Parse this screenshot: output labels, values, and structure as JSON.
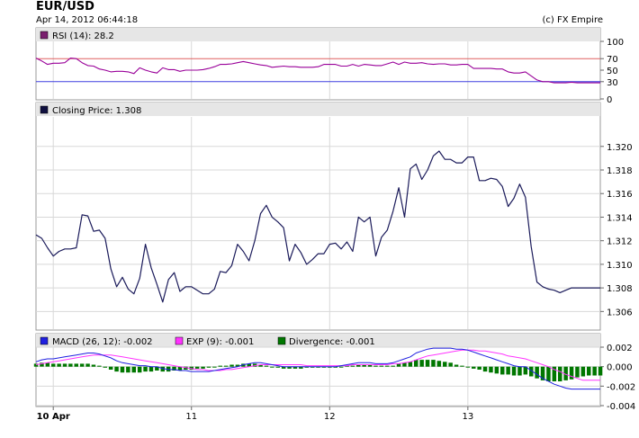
{
  "header": {
    "title": "EUR/USD",
    "timestamp": "Apr 14, 2012 06:44:18",
    "copyright": "(c) FX Empire"
  },
  "colors": {
    "rsi": "#990099",
    "rsi_box": "#7a1f6e",
    "rsi_upper": "#e06060",
    "rsi_lower": "#4040e0",
    "price": "#1a1a5a",
    "price_box": "#101040",
    "macd": "#1f1fe0",
    "exp": "#ff33ff",
    "divergence": "#007700",
    "grid": "#d8d8d8",
    "panel_bg": "#e6e6e6"
  },
  "x_axis": {
    "ticks": [
      {
        "label": "10 Apr",
        "value": 3,
        "bold": true
      },
      {
        "label": "11",
        "value": 27
      },
      {
        "label": "12",
        "value": 51
      },
      {
        "label": "13",
        "value": 75
      }
    ],
    "range": [
      0,
      98
    ]
  },
  "chart_data": [
    {
      "type": "line",
      "panel": "rsi",
      "legend": "RSI (14): 28.2",
      "ylim": [
        0,
        100
      ],
      "y_ticks": [
        "100",
        "70",
        "50",
        "30",
        "0"
      ],
      "y_tick_values": [
        100,
        70,
        50,
        30,
        0
      ],
      "levels": {
        "upper": 70,
        "lower": 30
      },
      "values": [
        71,
        66,
        60,
        62,
        62,
        63,
        71,
        70,
        63,
        58,
        57,
        52,
        50,
        47,
        48,
        48,
        47,
        44,
        54,
        50,
        47,
        45,
        54,
        51,
        51,
        48,
        50,
        50,
        50,
        51,
        53,
        56,
        60,
        60,
        61,
        63,
        65,
        63,
        61,
        59,
        58,
        55,
        56,
        57,
        56,
        56,
        55,
        55,
        55,
        56,
        60,
        60,
        60,
        57,
        57,
        60,
        57,
        60,
        59,
        58,
        58,
        61,
        64,
        60,
        64,
        62,
        62,
        63,
        61,
        60,
        61,
        61,
        59,
        59,
        60,
        60,
        53,
        53,
        53,
        53,
        52,
        52,
        47,
        45,
        45,
        47,
        40,
        33,
        30,
        30,
        28,
        28,
        28,
        29,
        28,
        28,
        28,
        28,
        28
      ]
    },
    {
      "type": "line",
      "panel": "price",
      "legend": "Closing Price: 1.308",
      "ylim": [
        1.3045,
        1.3225
      ],
      "y_ticks": [
        "1.320",
        "1.318",
        "1.316",
        "1.314",
        "1.312",
        "1.310",
        "1.308",
        "1.306"
      ],
      "y_tick_values": [
        1.32,
        1.318,
        1.316,
        1.314,
        1.312,
        1.31,
        1.308,
        1.306
      ],
      "values": [
        1.3125,
        1.3122,
        1.3114,
        1.3107,
        1.3111,
        1.3113,
        1.3113,
        1.3114,
        1.3142,
        1.3141,
        1.3128,
        1.3129,
        1.3122,
        1.3096,
        1.3081,
        1.3089,
        1.3079,
        1.3075,
        1.3088,
        1.3117,
        1.3097,
        1.3083,
        1.3068,
        1.3087,
        1.3093,
        1.3077,
        1.3081,
        1.3081,
        1.3078,
        1.3075,
        1.3075,
        1.3079,
        1.3094,
        1.3093,
        1.3099,
        1.3117,
        1.3111,
        1.3103,
        1.312,
        1.3143,
        1.315,
        1.314,
        1.3136,
        1.3131,
        1.3103,
        1.3117,
        1.311,
        1.31,
        1.3104,
        1.3109,
        1.3109,
        1.3117,
        1.3118,
        1.3113,
        1.3119,
        1.3111,
        1.314,
        1.3136,
        1.314,
        1.3107,
        1.3123,
        1.3129,
        1.3145,
        1.3165,
        1.314,
        1.3181,
        1.3185,
        1.3172,
        1.318,
        1.3192,
        1.3196,
        1.3189,
        1.3189,
        1.3186,
        1.3186,
        1.3191,
        1.3191,
        1.3171,
        1.3171,
        1.3173,
        1.3172,
        1.3166,
        1.3149,
        1.3156,
        1.3168,
        1.3157,
        1.3115,
        1.3085,
        1.3081,
        1.3079,
        1.3078,
        1.3076,
        1.3078,
        1.308,
        1.308,
        1.308,
        1.308,
        1.308,
        1.308
      ]
    },
    {
      "type": "line",
      "panel": "macd",
      "legend": {
        "macd": "MACD (26, 12): -0.002",
        "exp": "EXP (9): -0.001",
        "div": "Divergence: -0.001"
      },
      "ylim": [
        -0.004,
        0.002
      ],
      "y_ticks": [
        "0.002",
        "0.000",
        "-0.002",
        "-0.004"
      ],
      "y_tick_values": [
        0.002,
        0.0,
        -0.002,
        -0.004
      ],
      "series": [
        {
          "name": "MACD",
          "values": [
            0.0005,
            0.0007,
            0.0008,
            0.0008,
            0.0009,
            0.001,
            0.0011,
            0.0012,
            0.0013,
            0.0014,
            0.0014,
            0.0013,
            0.0011,
            0.0009,
            0.0006,
            0.0004,
            0.0003,
            0.0002,
            0.0001,
            0.0001,
            0.0,
            0.0,
            -0.0002,
            -0.0003,
            -0.0003,
            -0.0004,
            -0.0004,
            -0.0005,
            -0.0005,
            -0.0005,
            -0.0005,
            -0.0004,
            -0.0003,
            -0.0002,
            -0.0001,
            0.0,
            0.0002,
            0.0003,
            0.0004,
            0.0004,
            0.0003,
            0.0002,
            0.0001,
            0.0,
            0.0,
            0.0,
            0.0,
            0.0,
            0.0,
            0.0,
            0.0,
            0.0,
            0.0,
            0.0001,
            0.0002,
            0.0003,
            0.0004,
            0.0004,
            0.0004,
            0.0003,
            0.0003,
            0.0003,
            0.0004,
            0.0006,
            0.0008,
            0.001,
            0.0014,
            0.0016,
            0.0018,
            0.0019,
            0.0019,
            0.0019,
            0.0019,
            0.0018,
            0.0018,
            0.0017,
            0.0015,
            0.0013,
            0.0011,
            0.0009,
            0.0007,
            0.0005,
            0.0003,
            0.0001,
            0.0,
            0.0,
            -0.0004,
            -0.0008,
            -0.0012,
            -0.0015,
            -0.0018,
            -0.002,
            -0.0022,
            -0.0023,
            -0.0023,
            -0.0023,
            -0.0023,
            -0.0023,
            -0.0023
          ]
        },
        {
          "name": "EXP",
          "values": [
            0.0002,
            0.0003,
            0.0004,
            0.0005,
            0.0006,
            0.0007,
            0.0008,
            0.0009,
            0.001,
            0.0011,
            0.0012,
            0.0012,
            0.0012,
            0.0012,
            0.0011,
            0.001,
            0.0009,
            0.0008,
            0.0007,
            0.0006,
            0.0005,
            0.0004,
            0.0003,
            0.0002,
            0.0001,
            0.0,
            -0.0001,
            -0.0002,
            -0.0003,
            -0.0003,
            -0.0004,
            -0.0004,
            -0.0004,
            -0.0003,
            -0.0003,
            -0.0002,
            -0.0001,
            0.0,
            0.0001,
            0.0002,
            0.0002,
            0.0002,
            0.0002,
            0.0002,
            0.0002,
            0.0002,
            0.0002,
            0.0001,
            0.0001,
            0.0001,
            0.0001,
            0.0001,
            0.0001,
            0.0001,
            0.0001,
            0.0002,
            0.0002,
            0.0002,
            0.0002,
            0.0002,
            0.0002,
            0.0002,
            0.0003,
            0.0003,
            0.0004,
            0.0005,
            0.0007,
            0.0009,
            0.0011,
            0.0012,
            0.0013,
            0.0014,
            0.0015,
            0.0016,
            0.0017,
            0.0017,
            0.0017,
            0.0016,
            0.0016,
            0.0015,
            0.0014,
            0.0013,
            0.0011,
            0.001,
            0.0009,
            0.0008,
            0.0006,
            0.0004,
            0.0002,
            0.0,
            -0.0003,
            -0.0005,
            -0.0008,
            -0.001,
            -0.0012,
            -0.0014,
            -0.0014,
            -0.0014,
            -0.0014
          ]
        },
        {
          "name": "Divergence",
          "values": [
            0.0003,
            0.0004,
            0.0004,
            0.0003,
            0.0003,
            0.0003,
            0.0003,
            0.0003,
            0.0003,
            0.0003,
            0.0002,
            0.0001,
            -0.0001,
            -0.0003,
            -0.0005,
            -0.0006,
            -0.0006,
            -0.0006,
            -0.0006,
            -0.0005,
            -0.0005,
            -0.0004,
            -0.0005,
            -0.0005,
            -0.0004,
            -0.0004,
            -0.0003,
            -0.0003,
            -0.0002,
            -0.0002,
            -0.0001,
            0.0,
            0.0001,
            0.0001,
            0.0002,
            0.0002,
            0.0003,
            0.0003,
            0.0003,
            0.0002,
            0.0001,
            0.0,
            -0.0001,
            -0.0002,
            -0.0002,
            -0.0002,
            -0.0002,
            -0.0001,
            -0.0001,
            -0.0001,
            -0.0001,
            -0.0001,
            -0.0001,
            0.0,
            0.0001,
            0.0001,
            0.0002,
            0.0002,
            0.0002,
            0.0001,
            0.0001,
            0.0001,
            0.0001,
            0.0003,
            0.0004,
            0.0005,
            0.0007,
            0.0007,
            0.0007,
            0.0007,
            0.0006,
            0.0005,
            0.0004,
            0.0002,
            0.0001,
            0.0,
            -0.0002,
            -0.0003,
            -0.0005,
            -0.0006,
            -0.0007,
            -0.0008,
            -0.0008,
            -0.0009,
            -0.0009,
            -0.0008,
            -0.001,
            -0.0012,
            -0.0014,
            -0.0015,
            -0.0015,
            -0.0015,
            -0.0014,
            -0.0013,
            -0.0011,
            -0.001,
            -0.0009,
            -0.0009,
            -0.0009
          ]
        }
      ]
    }
  ]
}
